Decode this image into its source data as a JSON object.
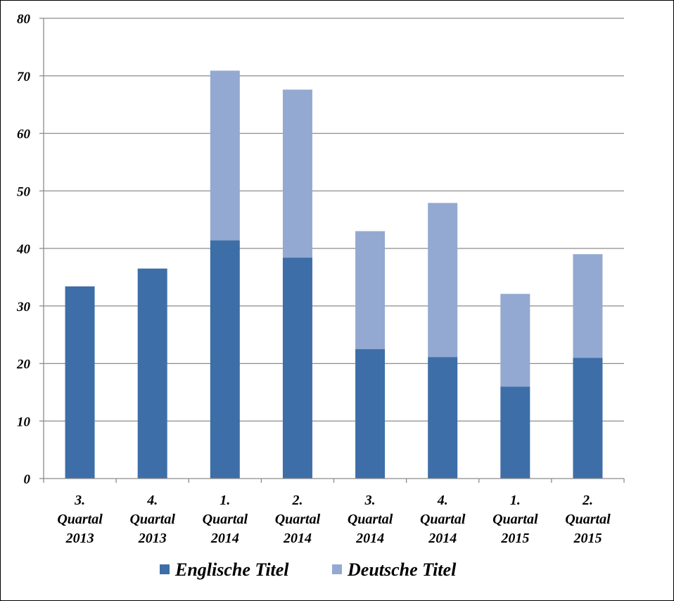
{
  "chart_data": {
    "type": "bar",
    "stacked": true,
    "categories": [
      [
        "3.",
        "Quartal",
        "2013"
      ],
      [
        "4.",
        "Quartal",
        "2013"
      ],
      [
        "1.",
        "Quartal",
        "2014"
      ],
      [
        "2.",
        "Quartal",
        "2014"
      ],
      [
        "3.",
        "Quartal",
        "2014"
      ],
      [
        "4.",
        "Quartal",
        "2014"
      ],
      [
        "1.",
        "Quartal",
        "2015"
      ],
      [
        "2.",
        "Quartal",
        "2015"
      ]
    ],
    "series": [
      {
        "name": "Englische Titel",
        "color": "#3d6ea7",
        "values": [
          33.4,
          36.5,
          41.4,
          38.4,
          22.5,
          21.1,
          16.0,
          21.0
        ]
      },
      {
        "name": "Deutsche Titel",
        "color": "#93a9d1",
        "values": [
          0,
          0,
          29.5,
          29.2,
          20.5,
          26.8,
          16.1,
          18.0
        ]
      }
    ],
    "ylim": [
      0,
      80
    ],
    "yticks": [
      "0",
      "10",
      "20",
      "30",
      "40",
      "50",
      "60",
      "70",
      "80"
    ],
    "grid": true,
    "legend": "bottom",
    "title": "",
    "xlabel": "",
    "ylabel": ""
  }
}
